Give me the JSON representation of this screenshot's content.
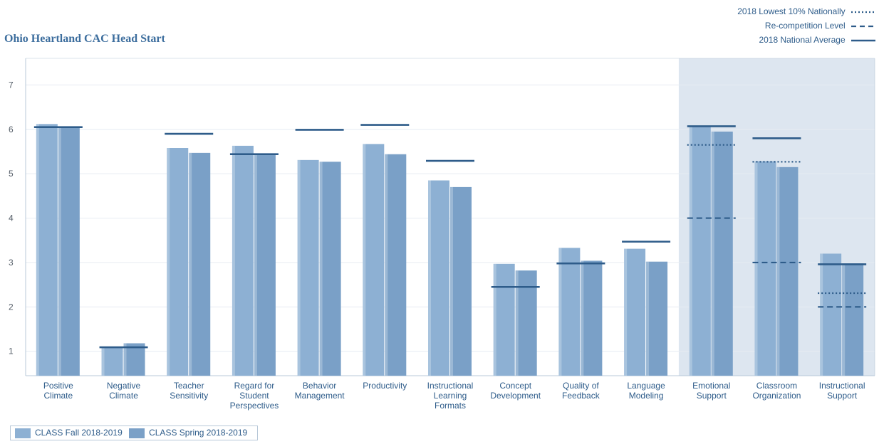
{
  "chart_data": {
    "type": "bar",
    "title": "Ohio Heartland CAC Head Start",
    "categories": [
      [
        "Positive",
        "Climate"
      ],
      [
        "Negative",
        "Climate"
      ],
      [
        "Teacher",
        "Sensitivity"
      ],
      [
        "Regard for",
        "Student",
        "Perspectives"
      ],
      [
        "Behavior",
        "Management"
      ],
      [
        "Productivity"
      ],
      [
        "Instructional",
        "Learning",
        "Formats"
      ],
      [
        "Concept",
        "Development"
      ],
      [
        "Quality of",
        "Feedback"
      ],
      [
        "Language",
        "Modeling"
      ],
      [
        "Emotional",
        "Support"
      ],
      [
        "Classroom",
        "Organization"
      ],
      [
        "Instructional",
        "Support"
      ]
    ],
    "series": [
      {
        "name": "CLASS Fall 2018-2019",
        "color": "#8db0d3",
        "values": [
          6.12,
          1.09,
          5.58,
          5.63,
          5.31,
          5.67,
          4.85,
          2.97,
          3.33,
          3.31,
          6.07,
          5.28,
          3.2
        ]
      },
      {
        "name": "CLASS Spring 2018-2019",
        "color": "#7aa0c7",
        "values": [
          6.03,
          1.18,
          5.47,
          5.46,
          5.27,
          5.44,
          4.7,
          2.82,
          3.04,
          3.02,
          5.95,
          5.15,
          2.98
        ]
      }
    ],
    "reference_lines": {
      "national_average": {
        "label": "2018 National Average",
        "style": "solid",
        "values": [
          6.05,
          1.09,
          5.9,
          5.44,
          5.99,
          6.1,
          5.29,
          2.45,
          2.98,
          3.47,
          6.07,
          5.8,
          2.96
        ]
      },
      "recompetition": {
        "label": "Re-competition Level",
        "style": "dashed",
        "values": [
          null,
          null,
          null,
          null,
          null,
          null,
          null,
          null,
          null,
          null,
          4.0,
          3.0,
          2.0
        ]
      },
      "lowest_10": {
        "label": "2018 Lowest 10% Nationally",
        "style": "dotted",
        "values": [
          null,
          null,
          null,
          null,
          null,
          null,
          null,
          null,
          null,
          null,
          5.65,
          5.27,
          2.31
        ]
      }
    },
    "ylim": [
      0.45,
      7.6
    ],
    "yticks": [
      1,
      2,
      3,
      4,
      5,
      6,
      7
    ],
    "highlight_categories": [
      10,
      11,
      12
    ],
    "grid": true,
    "legend_position": "bottom-left",
    "reference_legend_position": "top-right"
  },
  "colors": {
    "reference_line": "#2e5c8a",
    "highlight_band": "#dde6f0",
    "axis": "#b8c8d8",
    "grid": "#e6ecf2"
  }
}
